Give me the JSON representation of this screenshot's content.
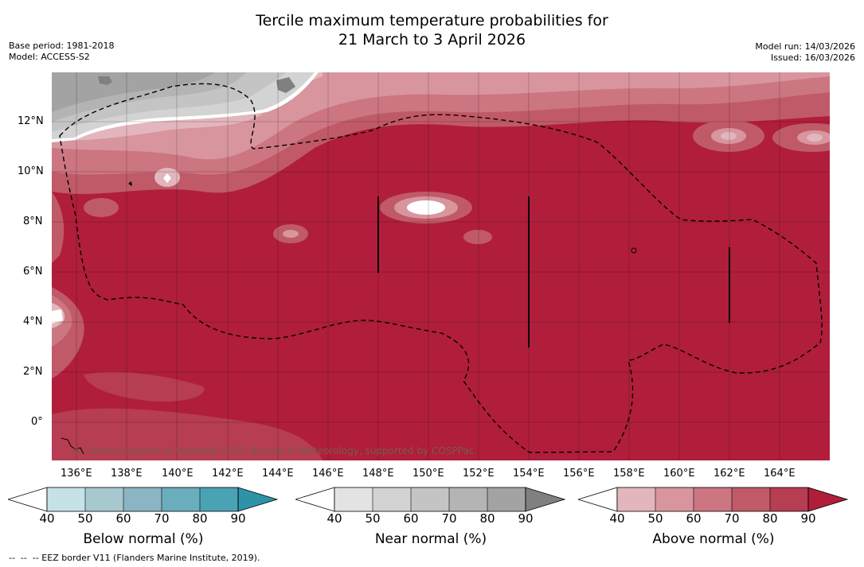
{
  "title": {
    "line1": "Tercile maximum temperature probabilities for",
    "line2": "21 March to 3 April 2026"
  },
  "meta_left": {
    "base_period": "Base period: 1981-2018",
    "model": "Model: ACCESS-S2"
  },
  "meta_right": {
    "model_run": "Model run: 14/03/2026",
    "issued": "Issued: 16/03/2026"
  },
  "map": {
    "lat_labels": [
      "12°N",
      "10°N",
      "8°N",
      "6°N",
      "4°N",
      "2°N",
      "0°"
    ],
    "lon_labels": [
      "136°E",
      "138°E",
      "140°E",
      "142°E",
      "144°E",
      "146°E",
      "148°E",
      "150°E",
      "152°E",
      "154°E",
      "156°E",
      "158°E",
      "160°E",
      "162°E",
      "164°E"
    ],
    "copyright": "© Commonwealth of Australia 2026, Bureau of Meteorology, supported by COSPPac"
  },
  "colorbars": [
    {
      "title": "Below normal (%)",
      "ticks": [
        "40",
        "50",
        "60",
        "70",
        "80",
        "90"
      ],
      "colors": [
        "#ffffff",
        "#c6e1e8",
        "#a8c8d0",
        "#8bb5c2",
        "#6aaebe",
        "#4aa3b4",
        "#2f93a8"
      ]
    },
    {
      "title": "Near normal (%)",
      "ticks": [
        "40",
        "50",
        "60",
        "70",
        "80",
        "90"
      ],
      "colors": [
        "#ffffff",
        "#e3e3e3",
        "#d3d3d3",
        "#c4c4c4",
        "#b4b4b4",
        "#a3a3a3",
        "#808080"
      ]
    },
    {
      "title": "Above normal (%)",
      "ticks": [
        "40",
        "50",
        "60",
        "70",
        "80",
        "90"
      ],
      "colors": [
        "#ffffff",
        "#e2b6bc",
        "#d8959e",
        "#cc7681",
        "#c05a68",
        "#b63d52",
        "#b01e3c"
      ]
    }
  ],
  "footnote": "--  --  -- EEZ border V11 (Flanders Marine Institute, 2019)."
}
